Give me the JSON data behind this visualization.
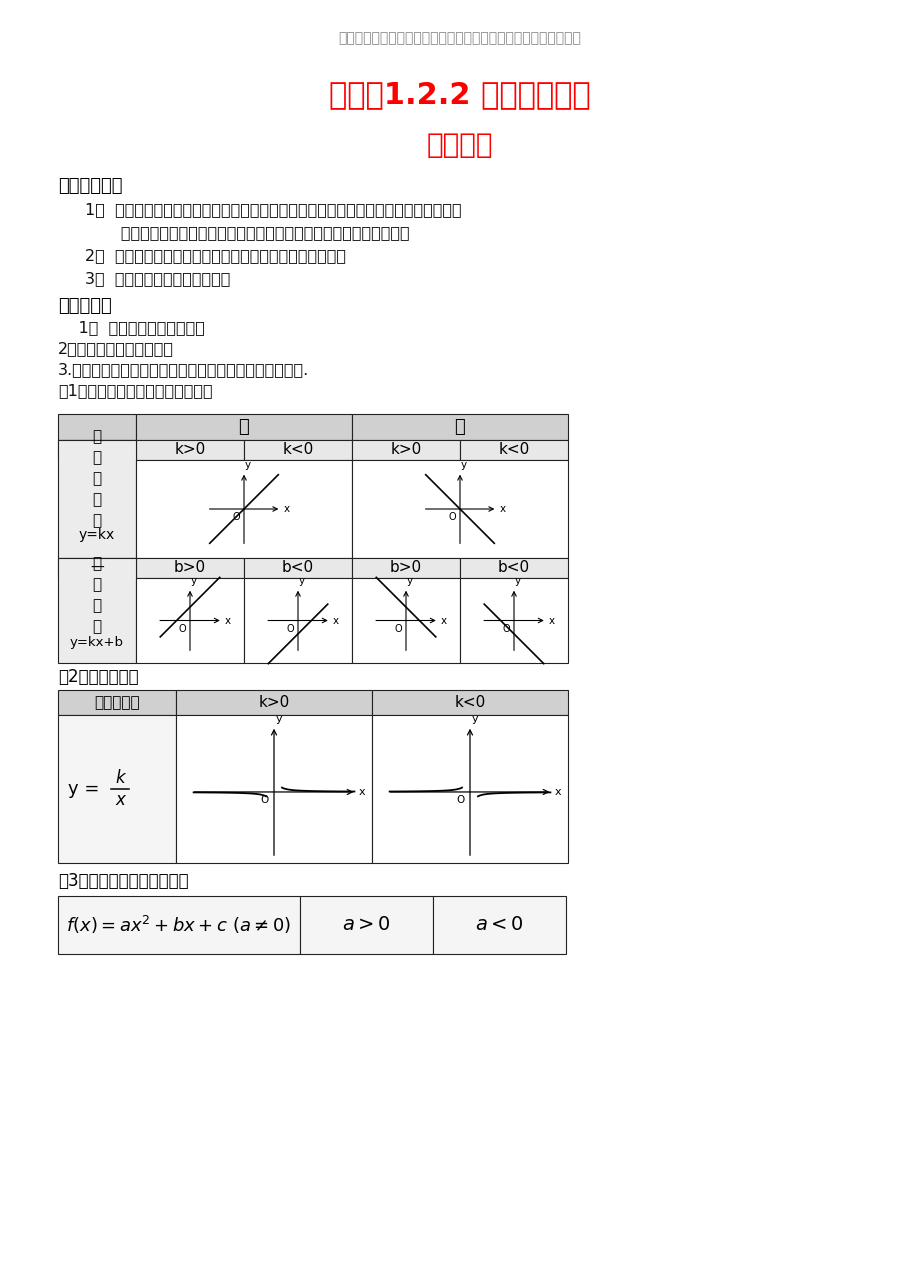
{
  "bg": "#ffffff",
  "header": "最新学习考试资料试卷件及海量高中、初中教学课尽在金锄头文库",
  "header_color": "#888888",
  "title": "课题：1.2.2 函数的表示法",
  "title_color": "#ff0000",
  "subtitle": "精讲部分",
  "subtitle_color": "#ff0000",
  "s1_title": "学习目标展示",
  "s1_lines": [
    "1．  明确函数的三种表示方法（解析法、列表法、图象法），了解三种表示方法各自的",
    "       优点，在实际情境中，会根据不同的需要选择恰当的方法表示函数；",
    "2．  用通过具体实例，了解简单的分段函数，并能简单应；",
    "3．  了解映射的概念及表示方法"
  ],
  "s2_title": "衔接性知识",
  "s2_lines": [
    "    1．  函数的三要素是什么？",
    "2．如何求函数的定义域？",
    "3.正比例函数、反比例函数、一次函数、二次函数的图象.",
    "（1）正比例函数与一次函数的图象"
  ],
  "t2_label": "（2）反比例函数",
  "t3_label": "（3）二次函数的图象与性质"
}
